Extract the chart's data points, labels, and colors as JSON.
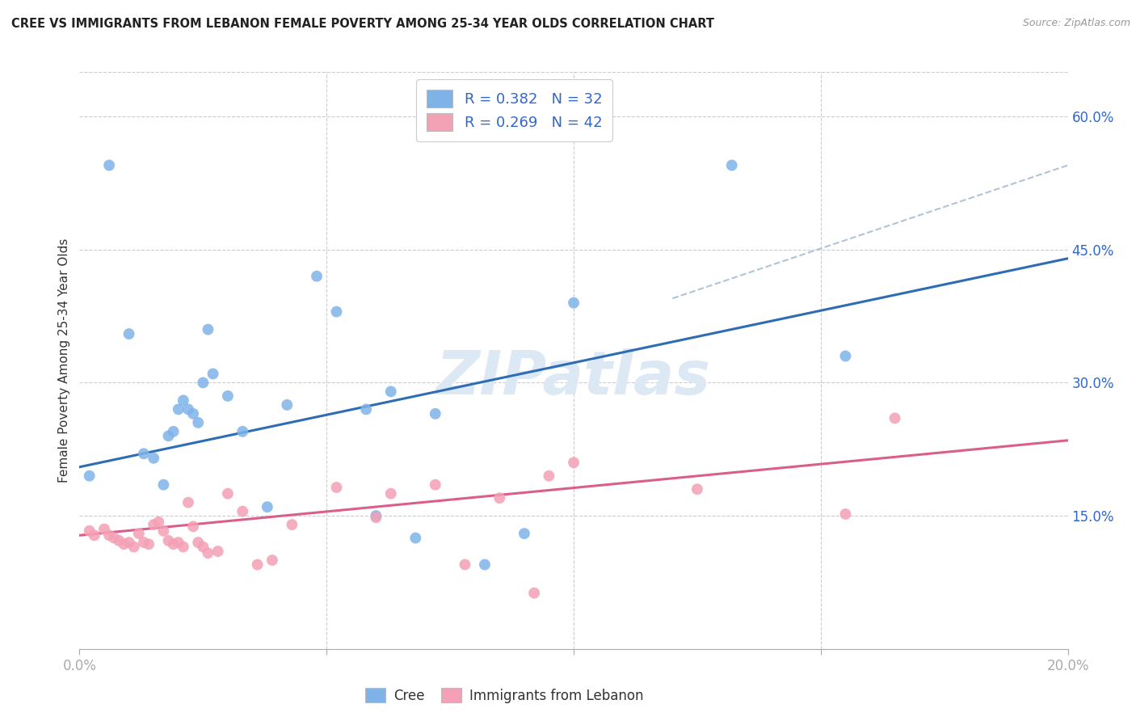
{
  "title": "CREE VS IMMIGRANTS FROM LEBANON FEMALE POVERTY AMONG 25-34 YEAR OLDS CORRELATION CHART",
  "source": "Source: ZipAtlas.com",
  "ylabel": "Female Poverty Among 25-34 Year Olds",
  "xlim": [
    0.0,
    0.2
  ],
  "ylim": [
    0.0,
    0.65
  ],
  "xticks": [
    0.0,
    0.05,
    0.1,
    0.15,
    0.2
  ],
  "ytick_labels_right": [
    "15.0%",
    "30.0%",
    "45.0%",
    "60.0%"
  ],
  "ytick_positions_right": [
    0.15,
    0.3,
    0.45,
    0.6
  ],
  "cree_color": "#7fb3e8",
  "lebanon_color": "#f4a0b5",
  "cree_line_color": "#2e6db4",
  "lebanon_line_color": "#d95f8a",
  "dash_color": "#b0c4d8",
  "legend_label1": "R = 0.382   N = 32",
  "legend_label2": "R = 0.269   N = 42",
  "watermark": "ZIPatlas",
  "cree_line": [
    0.0,
    0.2,
    0.205,
    0.44
  ],
  "lebanon_line": [
    0.0,
    0.2,
    0.128,
    0.235
  ],
  "dash_line": [
    0.12,
    0.2,
    0.395,
    0.545
  ],
  "cree_x": [
    0.002,
    0.006,
    0.01,
    0.013,
    0.015,
    0.017,
    0.018,
    0.019,
    0.02,
    0.021,
    0.022,
    0.023,
    0.024,
    0.025,
    0.026,
    0.027,
    0.03,
    0.033,
    0.038,
    0.042,
    0.048,
    0.052,
    0.058,
    0.06,
    0.063,
    0.068,
    0.072,
    0.082,
    0.09,
    0.1,
    0.132,
    0.155
  ],
  "cree_y": [
    0.195,
    0.545,
    0.355,
    0.22,
    0.215,
    0.185,
    0.24,
    0.245,
    0.27,
    0.28,
    0.27,
    0.265,
    0.255,
    0.3,
    0.36,
    0.31,
    0.285,
    0.245,
    0.16,
    0.275,
    0.42,
    0.38,
    0.27,
    0.15,
    0.29,
    0.125,
    0.265,
    0.095,
    0.13,
    0.39,
    0.545,
    0.33
  ],
  "lebanon_x": [
    0.002,
    0.003,
    0.005,
    0.006,
    0.007,
    0.008,
    0.009,
    0.01,
    0.011,
    0.012,
    0.013,
    0.014,
    0.015,
    0.016,
    0.017,
    0.018,
    0.019,
    0.02,
    0.021,
    0.022,
    0.023,
    0.024,
    0.025,
    0.026,
    0.028,
    0.03,
    0.033,
    0.036,
    0.039,
    0.043,
    0.052,
    0.06,
    0.063,
    0.072,
    0.078,
    0.085,
    0.092,
    0.095,
    0.1,
    0.125,
    0.155,
    0.165
  ],
  "lebanon_y": [
    0.133,
    0.128,
    0.135,
    0.128,
    0.125,
    0.122,
    0.118,
    0.12,
    0.115,
    0.13,
    0.12,
    0.118,
    0.14,
    0.143,
    0.133,
    0.122,
    0.118,
    0.12,
    0.115,
    0.165,
    0.138,
    0.12,
    0.115,
    0.108,
    0.11,
    0.175,
    0.155,
    0.095,
    0.1,
    0.14,
    0.182,
    0.148,
    0.175,
    0.185,
    0.095,
    0.17,
    0.063,
    0.195,
    0.21,
    0.18,
    0.152,
    0.26
  ]
}
